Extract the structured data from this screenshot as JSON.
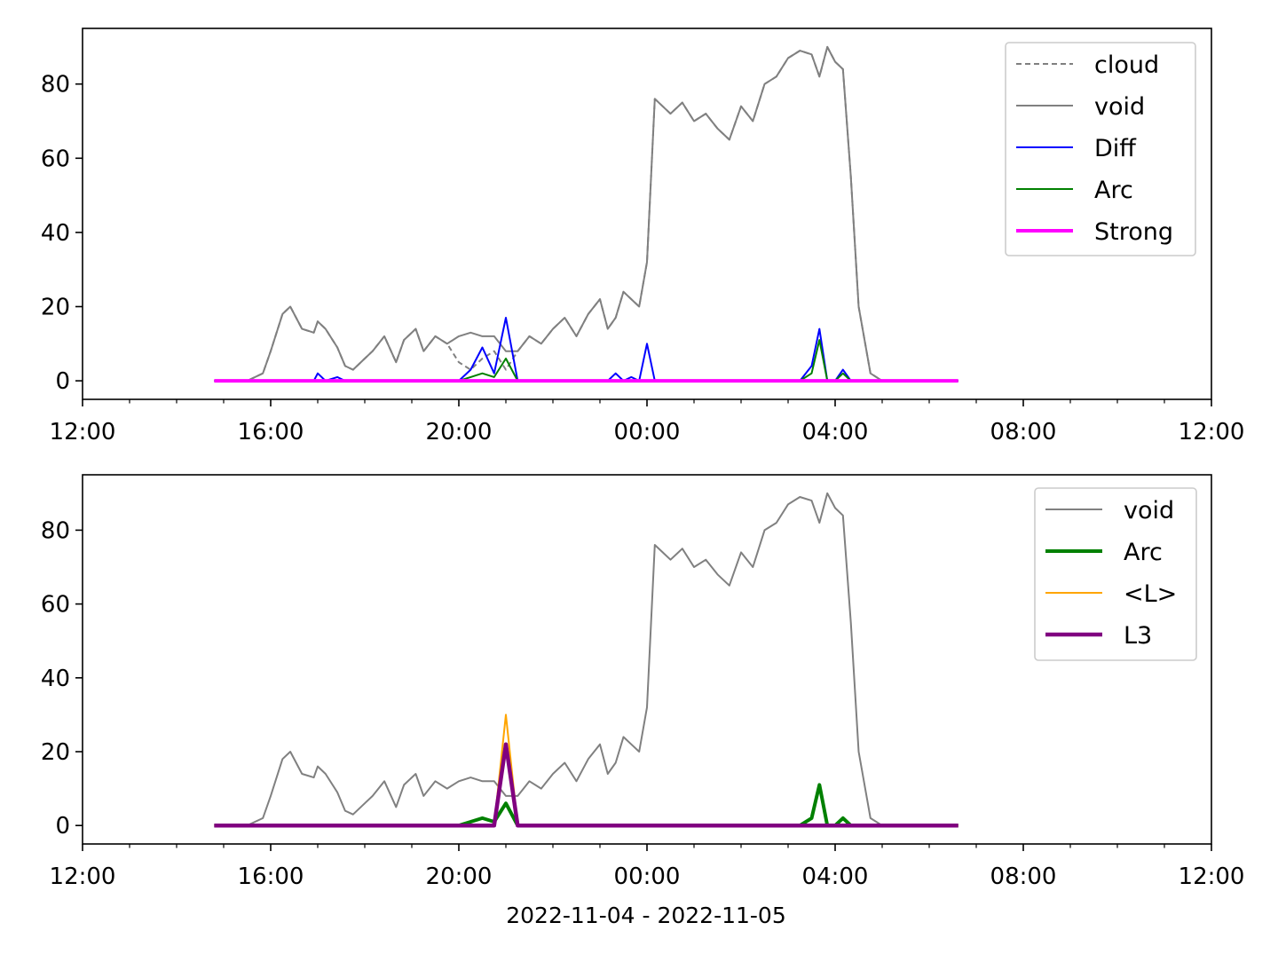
{
  "figure": {
    "xlabel": "2022-11-04 - 2022-11-05"
  },
  "chart_data": [
    {
      "type": "line",
      "title": "",
      "xlabel": "",
      "ylabel": "",
      "xlim": [
        "2022-11-04 12:00",
        "2022-11-05 12:00"
      ],
      "ylim": [
        -5,
        95
      ],
      "x_ticks": [
        "12:00",
        "16:00",
        "20:00",
        "00:00",
        "04:00",
        "08:00",
        "12:00"
      ],
      "y_ticks": [
        0,
        20,
        40,
        60,
        80
      ],
      "grid": false,
      "legend_position": "top-right",
      "x": [
        "14:48",
        "15:00",
        "15:30",
        "15:50",
        "16:00",
        "16:15",
        "16:25",
        "16:40",
        "16:55",
        "17:00",
        "17:10",
        "17:25",
        "17:35",
        "17:45",
        "18:00",
        "18:10",
        "18:25",
        "18:40",
        "18:50",
        "19:05",
        "19:15",
        "19:30",
        "19:45",
        "20:00",
        "20:15",
        "20:30",
        "20:45",
        "21:00",
        "21:15",
        "21:30",
        "21:45",
        "22:00",
        "22:15",
        "22:30",
        "22:45",
        "23:00",
        "23:10",
        "23:20",
        "23:30",
        "23:40",
        "23:50",
        "00:00",
        "00:10",
        "00:20",
        "00:30",
        "00:45",
        "01:00",
        "01:15",
        "01:30",
        "01:45",
        "02:00",
        "02:15",
        "02:30",
        "02:45",
        "03:00",
        "03:15",
        "03:30",
        "03:40",
        "03:50",
        "04:00",
        "04:10",
        "04:20",
        "04:30",
        "04:45",
        "05:00",
        "05:15",
        "05:30",
        "06:00",
        "06:37"
      ],
      "series": [
        {
          "name": "cloud",
          "color": "#808080",
          "style": "dashed",
          "values": [
            0,
            0,
            0,
            2,
            8,
            18,
            20,
            14,
            13,
            16,
            14,
            9,
            4,
            3,
            6,
            8,
            12,
            5,
            11,
            14,
            8,
            12,
            10,
            5,
            3,
            6,
            8,
            3,
            8,
            12,
            10,
            14,
            17,
            12,
            18,
            22,
            14,
            17,
            24,
            22,
            20,
            32,
            76,
            74,
            72,
            75,
            70,
            72,
            68,
            65,
            74,
            70,
            80,
            82,
            87,
            89,
            88,
            82,
            90,
            86,
            84,
            55,
            20,
            2,
            0,
            0,
            0,
            0,
            0
          ]
        },
        {
          "name": "void",
          "color": "#808080",
          "style": "solid",
          "values": [
            0,
            0,
            0,
            2,
            8,
            18,
            20,
            14,
            13,
            16,
            14,
            9,
            4,
            3,
            6,
            8,
            12,
            5,
            11,
            14,
            8,
            12,
            10,
            12,
            13,
            12,
            12,
            8,
            8,
            12,
            10,
            14,
            17,
            12,
            18,
            22,
            14,
            17,
            24,
            22,
            20,
            32,
            76,
            74,
            72,
            75,
            70,
            72,
            68,
            65,
            74,
            70,
            80,
            82,
            87,
            89,
            88,
            82,
            90,
            86,
            84,
            55,
            20,
            2,
            0,
            0,
            0,
            0,
            0
          ]
        },
        {
          "name": "Diff",
          "color": "#0000ff",
          "style": "solid",
          "values": [
            0,
            0,
            0,
            0,
            0,
            0,
            0,
            0,
            0,
            2,
            0,
            1,
            0,
            0,
            0,
            0,
            0,
            0,
            0,
            0,
            0,
            0,
            0,
            0,
            3,
            9,
            2,
            17,
            0,
            0,
            0,
            0,
            0,
            0,
            0,
            0,
            0,
            2,
            0,
            1,
            0,
            10,
            0,
            0,
            0,
            0,
            0,
            0,
            0,
            0,
            0,
            0,
            0,
            0,
            0,
            0,
            4,
            14,
            0,
            0,
            3,
            0,
            0,
            0,
            0,
            0,
            0,
            0,
            0
          ]
        },
        {
          "name": "Arc",
          "color": "#008000",
          "style": "solid",
          "values": [
            0,
            0,
            0,
            0,
            0,
            0,
            0,
            0,
            0,
            0,
            0,
            0,
            0,
            0,
            0,
            0,
            0,
            0,
            0,
            0,
            0,
            0,
            0,
            0,
            1,
            2,
            1,
            6,
            0,
            0,
            0,
            0,
            0,
            0,
            0,
            0,
            0,
            0,
            0,
            0,
            0,
            0,
            0,
            0,
            0,
            0,
            0,
            0,
            0,
            0,
            0,
            0,
            0,
            0,
            0,
            0,
            2,
            11,
            0,
            0,
            2,
            0,
            0,
            0,
            0,
            0,
            0,
            0,
            0
          ]
        },
        {
          "name": "Strong",
          "color": "#ff00ff",
          "style": "solid",
          "values": [
            0,
            0,
            0,
            0,
            0,
            0,
            0,
            0,
            0,
            0,
            0,
            0,
            0,
            0,
            0,
            0,
            0,
            0,
            0,
            0,
            0,
            0,
            0,
            0,
            0,
            0,
            0,
            0,
            0,
            0,
            0,
            0,
            0,
            0,
            0,
            0,
            0,
            0,
            0,
            0,
            0,
            0,
            0,
            0,
            0,
            0,
            0,
            0,
            0,
            0,
            0,
            0,
            0,
            0,
            0,
            0,
            0,
            0,
            0,
            0,
            0,
            0,
            0,
            0,
            0,
            0,
            0,
            0,
            0
          ]
        }
      ]
    },
    {
      "type": "line",
      "title": "",
      "xlabel": "2022-11-04 - 2022-11-05",
      "ylabel": "",
      "xlim": [
        "2022-11-04 12:00",
        "2022-11-05 12:00"
      ],
      "ylim": [
        -5,
        95
      ],
      "x_ticks": [
        "12:00",
        "16:00",
        "20:00",
        "00:00",
        "04:00",
        "08:00",
        "12:00"
      ],
      "y_ticks": [
        0,
        20,
        40,
        60,
        80
      ],
      "grid": false,
      "legend_position": "top-right",
      "x": [
        "14:48",
        "15:00",
        "15:30",
        "15:50",
        "16:00",
        "16:15",
        "16:25",
        "16:40",
        "16:55",
        "17:00",
        "17:10",
        "17:25",
        "17:35",
        "17:45",
        "18:00",
        "18:10",
        "18:25",
        "18:40",
        "18:50",
        "19:05",
        "19:15",
        "19:30",
        "19:45",
        "20:00",
        "20:15",
        "20:30",
        "20:45",
        "21:00",
        "21:15",
        "21:30",
        "21:45",
        "22:00",
        "22:15",
        "22:30",
        "22:45",
        "23:00",
        "23:10",
        "23:20",
        "23:30",
        "23:40",
        "23:50",
        "00:00",
        "00:10",
        "00:20",
        "00:30",
        "00:45",
        "01:00",
        "01:15",
        "01:30",
        "01:45",
        "02:00",
        "02:15",
        "02:30",
        "02:45",
        "03:00",
        "03:15",
        "03:30",
        "03:40",
        "03:50",
        "04:00",
        "04:10",
        "04:20",
        "04:30",
        "04:45",
        "05:00",
        "05:15",
        "05:30",
        "06:00",
        "06:37"
      ],
      "series": [
        {
          "name": "void",
          "color": "#808080",
          "style": "solid",
          "values": [
            0,
            0,
            0,
            2,
            8,
            18,
            20,
            14,
            13,
            16,
            14,
            9,
            4,
            3,
            6,
            8,
            12,
            5,
            11,
            14,
            8,
            12,
            10,
            12,
            13,
            12,
            12,
            8,
            8,
            12,
            10,
            14,
            17,
            12,
            18,
            22,
            14,
            17,
            24,
            22,
            20,
            32,
            76,
            74,
            72,
            75,
            70,
            72,
            68,
            65,
            74,
            70,
            80,
            82,
            87,
            89,
            88,
            82,
            90,
            86,
            84,
            55,
            20,
            2,
            0,
            0,
            0,
            0,
            0
          ]
        },
        {
          "name": "Arc",
          "color": "#008000",
          "style": "solid",
          "values": [
            0,
            0,
            0,
            0,
            0,
            0,
            0,
            0,
            0,
            0,
            0,
            0,
            0,
            0,
            0,
            0,
            0,
            0,
            0,
            0,
            0,
            0,
            0,
            0,
            1,
            2,
            1,
            6,
            0,
            0,
            0,
            0,
            0,
            0,
            0,
            0,
            0,
            0,
            0,
            0,
            0,
            0,
            0,
            0,
            0,
            0,
            0,
            0,
            0,
            0,
            0,
            0,
            0,
            0,
            0,
            0,
            2,
            11,
            0,
            0,
            2,
            0,
            0,
            0,
            0,
            0,
            0,
            0,
            0
          ]
        },
        {
          "name": "<L>",
          "color": "#ffa500",
          "style": "solid",
          "values": [
            0,
            0,
            0,
            0,
            0,
            0,
            0,
            0,
            0,
            0,
            0,
            0,
            0,
            0,
            0,
            0,
            0,
            0,
            0,
            0,
            0,
            0,
            0,
            0,
            0,
            0,
            0,
            30,
            0,
            0,
            0,
            0,
            0,
            0,
            0,
            0,
            0,
            0,
            0,
            0,
            0,
            0,
            0,
            0,
            0,
            0,
            0,
            0,
            0,
            0,
            0,
            0,
            0,
            0,
            0,
            0,
            0,
            0,
            0,
            0,
            0,
            0,
            0,
            0,
            0,
            0,
            0,
            0,
            0
          ]
        },
        {
          "name": "L3",
          "color": "#800080",
          "style": "solid",
          "values": [
            0,
            0,
            0,
            0,
            0,
            0,
            0,
            0,
            0,
            0,
            0,
            0,
            0,
            0,
            0,
            0,
            0,
            0,
            0,
            0,
            0,
            0,
            0,
            0,
            0,
            0,
            0,
            22,
            0,
            0,
            0,
            0,
            0,
            0,
            0,
            0,
            0,
            0,
            0,
            0,
            0,
            0,
            0,
            0,
            0,
            0,
            0,
            0,
            0,
            0,
            0,
            0,
            0,
            0,
            0,
            0,
            0,
            0,
            0,
            0,
            0,
            0,
            0,
            0,
            0,
            0,
            0,
            0,
            0
          ]
        }
      ]
    }
  ]
}
